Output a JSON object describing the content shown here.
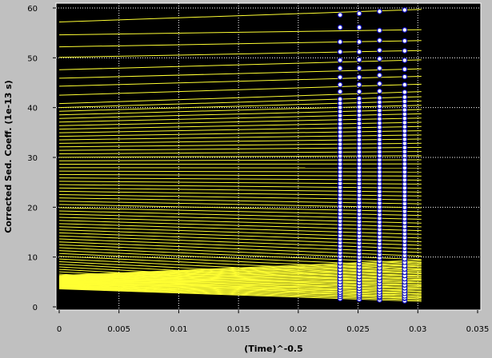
{
  "chart_data": {
    "type": "line",
    "xlabel": "(Time)^-0.5",
    "ylabel": "Corrected Sed. Coeff. (1e-13 s)",
    "xlim": [
      0,
      0.035
    ],
    "ylim": [
      0,
      60
    ],
    "x_ticks": [
      "0",
      "0.005",
      "0.01",
      "0.015",
      "0.02",
      "0.025",
      "0.03",
      "0.035"
    ],
    "y_ticks": [
      "0",
      "10",
      "20",
      "30",
      "40",
      "50",
      "60"
    ],
    "grid": true,
    "plot_background": "#000000",
    "line_color": "#ffff33",
    "point_fill": "#ffffff",
    "point_stroke": "#1010c0",
    "scan_x": [
      0.0235,
      0.0251,
      0.0268,
      0.0289
    ],
    "fit_x_end": 0.0303,
    "top_lines": [
      {
        "start": 57.2,
        "points": [
          58.6,
          58.9,
          59.3,
          59.6
        ]
      },
      {
        "start": 54.6,
        "points": [
          56.1,
          56.1,
          55.5,
          55.6
        ]
      },
      {
        "start": 52.2,
        "points": [
          53.2,
          53.2,
          53.5,
          53.4
        ]
      },
      {
        "start": 50.1,
        "points": [
          51.2,
          51.2,
          51.5,
          51.4
        ]
      },
      {
        "start": 47.6,
        "points": [
          49.5,
          49.6,
          49.8,
          49.5
        ]
      },
      {
        "start": 45.9,
        "points": [
          47.9,
          47.9,
          47.9,
          47.7
        ]
      },
      {
        "start": 44.3,
        "points": [
          46.1,
          46.1,
          46.5,
          46.2
        ]
      },
      {
        "start": 42.5,
        "points": [
          44.6,
          44.6,
          44.8,
          44.6
        ]
      },
      {
        "start": 40.8,
        "points": [
          43.2,
          43.2,
          43.3,
          43.1
        ]
      }
    ],
    "dense_lines": {
      "count": 55,
      "start_min": 5.8,
      "start_max": 40.0,
      "end_min": 1.6,
      "end_max": 42.2
    },
    "bottom_lines": {
      "count": 34,
      "start_min": 3.6,
      "start_max": 6.3,
      "end_min": 1.1,
      "end_max": 9.4
    }
  }
}
